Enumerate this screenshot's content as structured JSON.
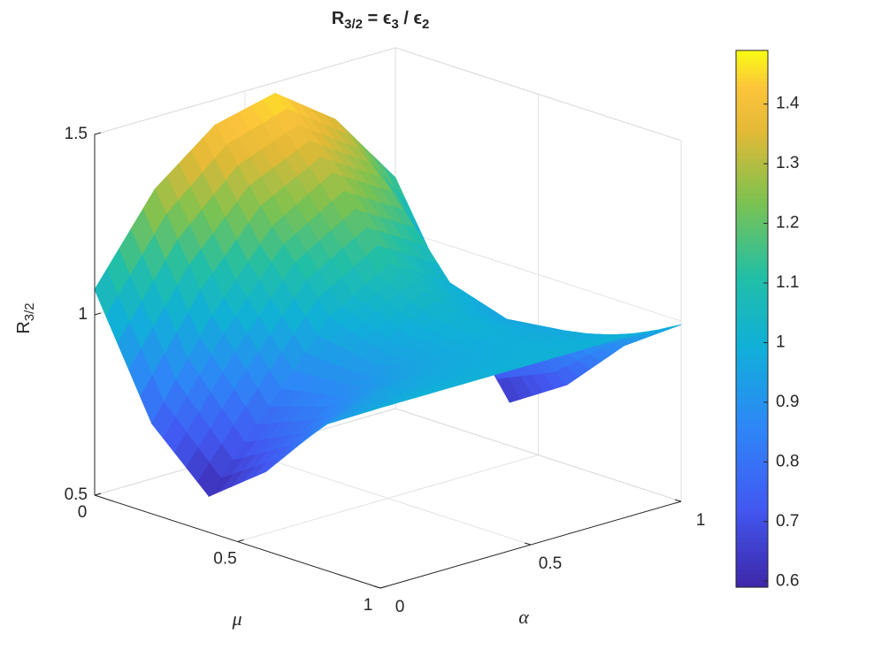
{
  "chart_data": {
    "type": "surface",
    "title_parts": [
      "R",
      "3/2",
      " = ϵ",
      "3",
      " / ϵ",
      "2"
    ],
    "xlabel": "μ",
    "ylabel": "α",
    "zlabel_parts": [
      "R",
      "3/2"
    ],
    "x": [
      0,
      0.2,
      0.4,
      0.6,
      0.8,
      1
    ],
    "y": [
      0,
      0.2,
      0.4,
      0.6,
      0.8,
      1
    ],
    "z": [
      [
        1.07,
        1.3,
        1.43,
        1.47,
        1.35,
        1.14
      ],
      [
        0.75,
        1.0,
        1.2,
        1.3,
        1.2,
        0.85
      ],
      [
        0.6,
        0.8,
        1.0,
        1.1,
        1.0,
        0.62
      ],
      [
        0.72,
        0.85,
        0.95,
        1.02,
        0.95,
        0.72
      ],
      [
        0.9,
        0.95,
        0.97,
        0.99,
        0.97,
        0.88
      ],
      [
        1.0,
        1.0,
        1.0,
        1.0,
        1.0,
        0.99
      ]
    ],
    "xlim": [
      0,
      1
    ],
    "ylim": [
      0,
      1
    ],
    "zlim": [
      0.5,
      1.5
    ],
    "xticks": [
      0,
      0.5,
      1
    ],
    "yticks": [
      0,
      0.5,
      1
    ],
    "zticks": [
      0.5,
      1,
      1.5
    ],
    "colormap": "parula",
    "clim": [
      0.59,
      1.49
    ],
    "cticks": [
      0.6,
      0.7,
      0.8,
      0.9,
      1,
      1.1,
      1.2,
      1.3,
      1.4
    ],
    "grid": true
  }
}
